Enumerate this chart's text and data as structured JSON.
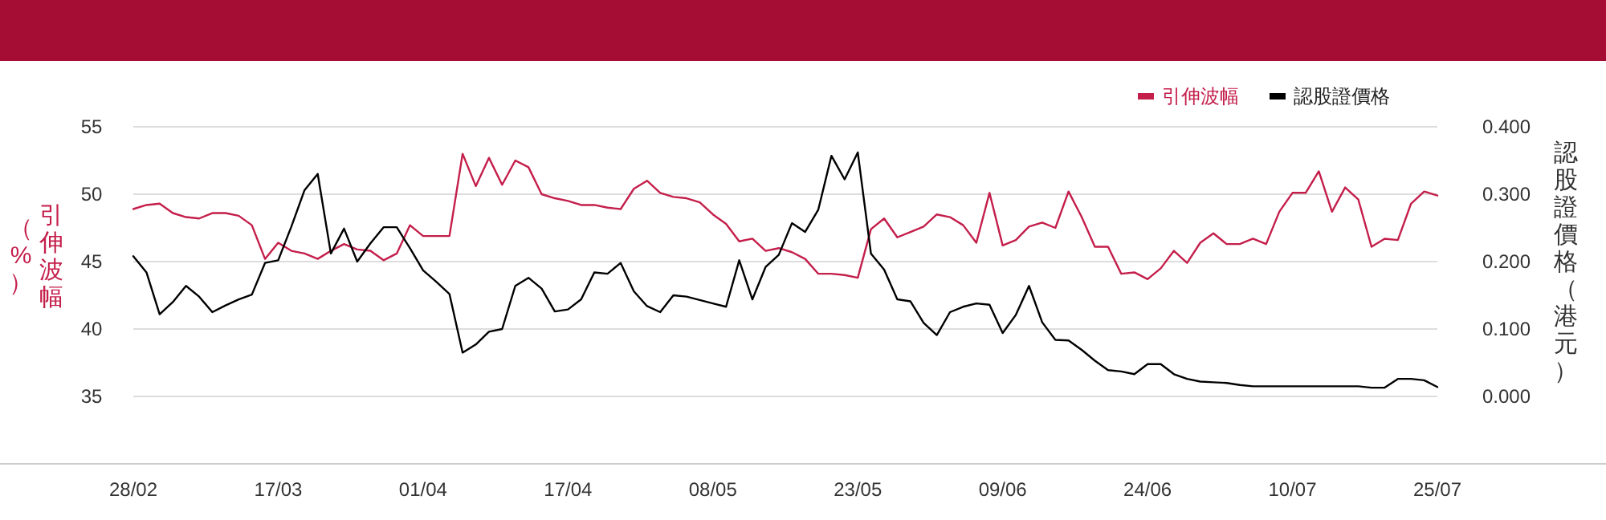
{
  "chart_data": {
    "type": "line",
    "categories": [
      "28/02",
      null,
      null,
      null,
      null,
      null,
      null,
      null,
      null,
      null,
      null,
      "17/03",
      null,
      null,
      null,
      null,
      null,
      null,
      null,
      null,
      null,
      null,
      "01/04",
      null,
      null,
      null,
      null,
      null,
      null,
      null,
      null,
      null,
      null,
      "17/04",
      null,
      null,
      null,
      null,
      null,
      null,
      null,
      null,
      null,
      null,
      "08/05",
      null,
      null,
      null,
      null,
      null,
      null,
      null,
      null,
      null,
      null,
      "23/05",
      null,
      null,
      null,
      null,
      null,
      null,
      null,
      null,
      null,
      null,
      "09/06",
      null,
      null,
      null,
      null,
      null,
      null,
      null,
      null,
      null,
      null,
      "24/06",
      null,
      null,
      null,
      null,
      null,
      null,
      null,
      null,
      null,
      null,
      "10/07",
      null,
      null,
      null,
      null,
      null,
      null,
      null,
      null,
      null,
      null,
      "25/07"
    ],
    "series": [
      {
        "name": "引伸波幅",
        "color": "#c41e4a",
        "values": [
          48.9,
          49.2,
          49.3,
          48.6,
          48.3,
          48.2,
          48.6,
          48.6,
          48.4,
          47.7,
          45.2,
          46.4,
          45.8,
          45.6,
          45.2,
          45.8,
          46.3,
          45.9,
          45.8,
          45.1,
          45.6,
          47.7,
          46.9,
          46.9,
          46.9,
          53.0,
          50.6,
          52.7,
          50.7,
          52.5,
          52.0,
          50.0,
          49.7,
          49.5,
          49.2,
          49.2,
          49.0,
          48.9,
          50.4,
          51.0,
          50.1,
          49.8,
          49.7,
          49.4,
          48.5,
          47.8,
          46.5,
          46.7,
          45.8,
          46.0,
          45.7,
          45.2,
          44.1,
          44.1,
          44.0,
          43.8,
          47.4,
          48.2,
          46.8,
          47.2,
          47.6,
          48.5,
          48.3,
          47.7,
          46.4,
          50.1,
          46.2,
          46.6,
          47.6,
          47.9,
          47.5,
          50.2,
          48.3,
          46.1,
          46.1,
          44.1,
          44.2,
          43.7,
          44.5,
          45.8,
          44.9,
          46.4,
          47.1,
          46.3,
          46.3,
          46.7,
          46.3,
          48.7,
          50.1,
          50.1,
          51.7,
          48.7,
          50.5,
          49.6,
          46.1,
          46.7,
          46.6,
          49.3,
          50.2,
          49.9
        ]
      },
      {
        "name": "認股證價格",
        "color": "#000000",
        "axis": "y2",
        "values": [
          0.208,
          0.184,
          0.122,
          0.14,
          0.164,
          0.148,
          0.125,
          0.135,
          0.144,
          0.151,
          0.198,
          0.202,
          0.252,
          0.306,
          0.33,
          0.212,
          0.249,
          0.2,
          0.227,
          0.251,
          0.251,
          0.22,
          0.187,
          0.17,
          0.152,
          0.065,
          0.077,
          0.096,
          0.1,
          0.164,
          0.176,
          0.16,
          0.126,
          0.129,
          0.144,
          0.184,
          0.182,
          0.198,
          0.156,
          0.134,
          0.125,
          0.15,
          0.148,
          0.143,
          0.138,
          0.133,
          0.202,
          0.144,
          0.192,
          0.21,
          0.257,
          0.244,
          0.277,
          0.357,
          0.322,
          0.362,
          0.212,
          0.188,
          0.144,
          0.141,
          0.109,
          0.091,
          0.125,
          0.133,
          0.138,
          0.136,
          0.094,
          0.121,
          0.164,
          0.11,
          0.084,
          0.083,
          0.069,
          0.053,
          0.039,
          0.037,
          0.033,
          0.048,
          0.048,
          0.033,
          0.026,
          0.022,
          0.021,
          0.02,
          0.017,
          0.015,
          0.015,
          0.015,
          0.015,
          0.015,
          0.015,
          0.015,
          0.015,
          0.015,
          0.013,
          0.013,
          0.026,
          0.026,
          0.024,
          0.014
        ]
      }
    ],
    "ylabel": "引伸波幅（%）",
    "y2label": "認股證價格（港元）",
    "ylim": [
      30,
      55
    ],
    "yticks": [
      35,
      40,
      45,
      50,
      55
    ],
    "y2lim": [
      -0.1,
      0.4
    ],
    "y2ticks": [
      {
        "value": 0,
        "label": "0.000"
      },
      {
        "value": 0.1,
        "label": "0.100"
      },
      {
        "value": 0.2,
        "label": "0.200"
      },
      {
        "value": 0.3,
        "label": "0.300"
      },
      {
        "value": 0.4,
        "label": "0.400"
      }
    ],
    "grid": "y",
    "legend": "top right",
    "marker": "none",
    "line_style": "solid"
  }
}
